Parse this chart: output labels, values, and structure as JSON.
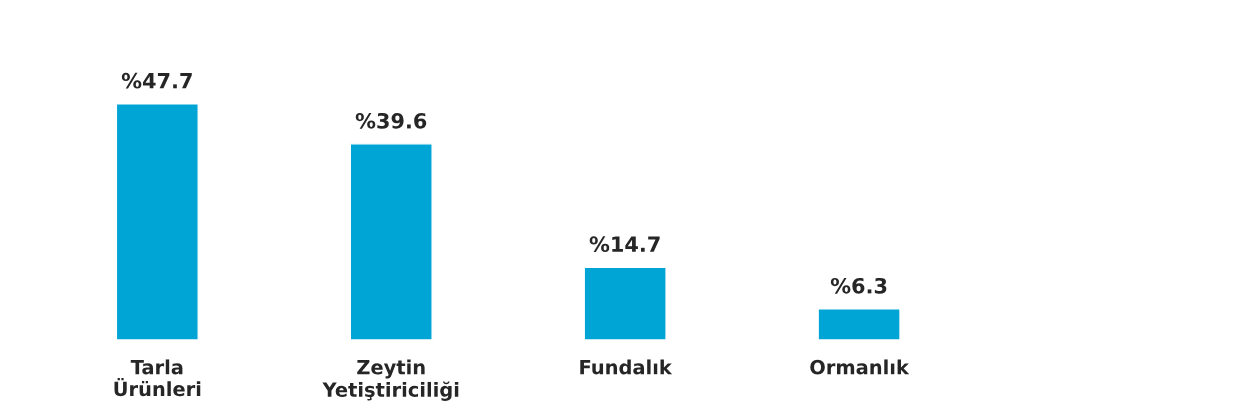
{
  "chart_data": {
    "type": "bar",
    "categories": [
      "Tarla\nÜrünleri",
      "Zeytin\nYetiştiriciliği",
      "Fundalık",
      "Ormanlık"
    ],
    "values": [
      47.7,
      39.6,
      14.7,
      6.3
    ],
    "value_labels": [
      "%47.7",
      "%39.6",
      "%14.7",
      "%6.3"
    ],
    "color": "#00a5d6",
    "grid": false,
    "legend": false
  }
}
